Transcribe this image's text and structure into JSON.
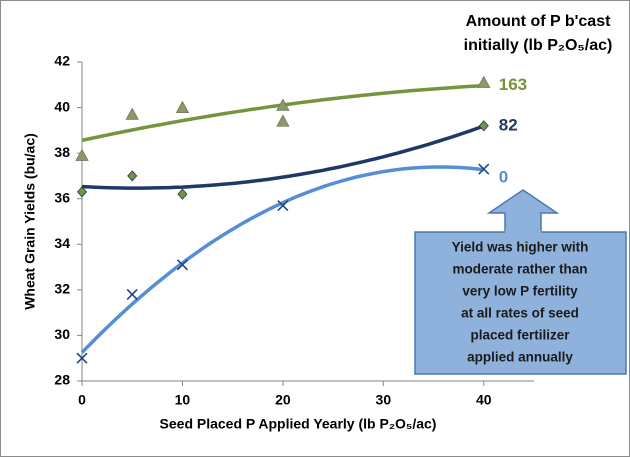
{
  "chart_data": {
    "type": "scatter",
    "legend_title": [
      "Amount of P b'cast",
      "initially (lb P₂O₅/ac)"
    ],
    "x_label": "Seed Placed P Applied Yearly (lb P₂O₅/ac)",
    "y_label": "Wheat Grain Yields (bu/ac)",
    "xlim": [
      0,
      45
    ],
    "ylim": [
      28,
      42
    ],
    "xticks": [
      0,
      10,
      20,
      30,
      40
    ],
    "yticks": [
      28,
      30,
      32,
      34,
      36,
      38,
      40,
      42
    ],
    "trendline": "quadratic",
    "series": [
      {
        "name": "163",
        "color": "#77933c",
        "marker": "triangle",
        "marker_color": "#8c9a6a",
        "x": [
          0,
          5,
          10,
          20,
          20,
          40
        ],
        "values": [
          37.9,
          39.7,
          40.0,
          40.1,
          39.4,
          41.1
        ]
      },
      {
        "name": "82",
        "color": "#1f3864",
        "marker": "diamond",
        "marker_color": "#77933c",
        "x": [
          0,
          5,
          10,
          40
        ],
        "values": [
          36.3,
          37.0,
          36.2,
          39.2
        ]
      },
      {
        "name": "0",
        "color": "#558ed5",
        "marker": "x",
        "marker_color": "#1f497d",
        "x": [
          0,
          5,
          10,
          20,
          40
        ],
        "values": [
          29.0,
          31.8,
          33.1,
          35.7,
          37.3
        ]
      }
    ],
    "annotation": [
      "Yield was higher with",
      "moderate rather than",
      "very low P fertility",
      "at all rates of seed",
      "placed fertilizer",
      "applied annually"
    ]
  }
}
